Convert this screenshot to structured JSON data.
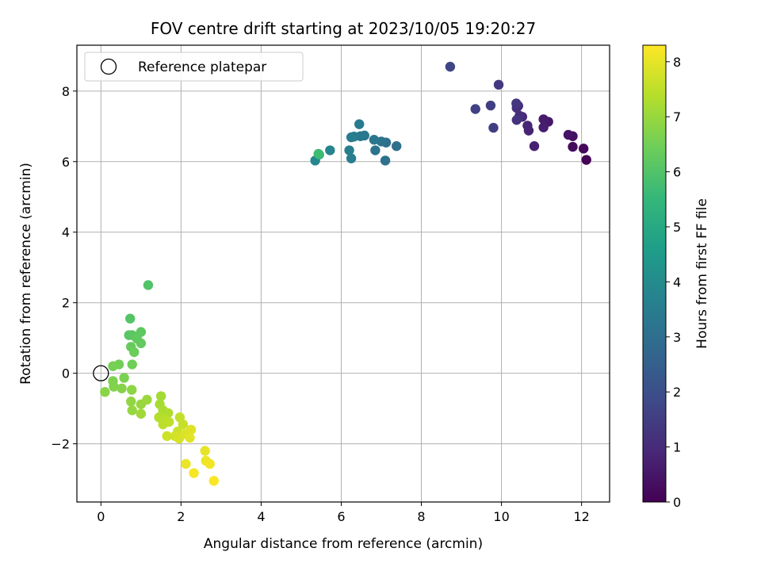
{
  "chart_data": {
    "type": "scatter",
    "title": "FOV centre drift starting at 2023/10/05 19:20:27",
    "xlabel": "Angular distance from reference (arcmin)",
    "ylabel": "Rotation from reference (arcmin)",
    "xlim": [
      -0.6,
      12.7
    ],
    "ylim": [
      -3.65,
      9.3
    ],
    "xticks": [
      0,
      2,
      4,
      6,
      8,
      10,
      12
    ],
    "yticks": [
      -2,
      0,
      2,
      4,
      6,
      8
    ],
    "grid": true,
    "legend": {
      "placement": "top-left",
      "entries": [
        "Reference platepar"
      ]
    },
    "reference_point": {
      "x": 0,
      "y": 0
    },
    "colorbar": {
      "label": "Hours from first FF file",
      "colormap": "viridis",
      "range": [
        0,
        8.3
      ],
      "ticks": [
        0,
        1,
        2,
        3,
        4,
        5,
        6,
        7,
        8
      ]
    },
    "points": [
      {
        "x": 12.12,
        "y": 6.05,
        "c": 0.05
      },
      {
        "x": 12.05,
        "y": 6.37,
        "c": 0.15
      },
      {
        "x": 11.78,
        "y": 6.42,
        "c": 0.25
      },
      {
        "x": 11.78,
        "y": 6.72,
        "c": 0.35
      },
      {
        "x": 11.67,
        "y": 6.76,
        "c": 0.45
      },
      {
        "x": 11.17,
        "y": 7.13,
        "c": 0.55
      },
      {
        "x": 11.05,
        "y": 7.2,
        "c": 0.62
      },
      {
        "x": 11.05,
        "y": 6.97,
        "c": 0.68
      },
      {
        "x": 10.82,
        "y": 6.44,
        "c": 0.75
      },
      {
        "x": 10.68,
        "y": 6.88,
        "c": 0.82
      },
      {
        "x": 10.65,
        "y": 7.02,
        "c": 0.88
      },
      {
        "x": 10.52,
        "y": 7.27,
        "c": 0.95
      },
      {
        "x": 10.42,
        "y": 7.58,
        "c": 1.02
      },
      {
        "x": 10.45,
        "y": 7.3,
        "c": 1.08
      },
      {
        "x": 10.38,
        "y": 7.52,
        "c": 1.15
      },
      {
        "x": 10.38,
        "y": 7.18,
        "c": 1.22
      },
      {
        "x": 10.37,
        "y": 7.65,
        "c": 1.3
      },
      {
        "x": 9.93,
        "y": 8.18,
        "c": 1.38
      },
      {
        "x": 9.8,
        "y": 6.96,
        "c": 1.46
      },
      {
        "x": 9.73,
        "y": 7.59,
        "c": 1.54
      },
      {
        "x": 9.35,
        "y": 7.49,
        "c": 1.62
      },
      {
        "x": 8.72,
        "y": 8.69,
        "c": 1.7
      },
      {
        "x": 7.38,
        "y": 6.44,
        "c": 3.0
      },
      {
        "x": 7.12,
        "y": 6.54,
        "c": 3.05
      },
      {
        "x": 7.1,
        "y": 6.03,
        "c": 3.1
      },
      {
        "x": 7.0,
        "y": 6.57,
        "c": 3.15
      },
      {
        "x": 6.85,
        "y": 6.32,
        "c": 3.2
      },
      {
        "x": 6.82,
        "y": 6.62,
        "c": 3.25
      },
      {
        "x": 6.58,
        "y": 6.74,
        "c": 3.3
      },
      {
        "x": 6.48,
        "y": 6.72,
        "c": 3.35
      },
      {
        "x": 6.45,
        "y": 7.06,
        "c": 3.4
      },
      {
        "x": 6.32,
        "y": 6.71,
        "c": 3.45
      },
      {
        "x": 6.25,
        "y": 6.69,
        "c": 3.5
      },
      {
        "x": 6.25,
        "y": 6.09,
        "c": 3.55
      },
      {
        "x": 6.2,
        "y": 6.32,
        "c": 3.6
      },
      {
        "x": 5.72,
        "y": 6.32,
        "c": 3.75
      },
      {
        "x": 5.35,
        "y": 6.03,
        "c": 3.85
      },
      {
        "x": 5.45,
        "y": 6.2,
        "c": 5.3
      },
      {
        "x": 5.43,
        "y": 6.22,
        "c": 5.7
      },
      {
        "x": 1.18,
        "y": 2.5,
        "c": 6.0
      },
      {
        "x": 0.73,
        "y": 1.55,
        "c": 6.05
      },
      {
        "x": 0.7,
        "y": 1.08,
        "c": 6.1
      },
      {
        "x": 0.78,
        "y": 1.08,
        "c": 6.15
      },
      {
        "x": 1.0,
        "y": 1.17,
        "c": 6.2
      },
      {
        "x": 0.9,
        "y": 0.98,
        "c": 6.25
      },
      {
        "x": 1.0,
        "y": 0.85,
        "c": 6.3
      },
      {
        "x": 0.75,
        "y": 0.75,
        "c": 6.35
      },
      {
        "x": 0.83,
        "y": 0.6,
        "c": 6.4
      },
      {
        "x": 0.78,
        "y": 0.25,
        "c": 6.45
      },
      {
        "x": 0.45,
        "y": 0.25,
        "c": 6.5
      },
      {
        "x": 0.3,
        "y": 0.2,
        "c": 6.55
      },
      {
        "x": 0.58,
        "y": -0.13,
        "c": 6.6
      },
      {
        "x": 0.3,
        "y": -0.22,
        "c": 6.65
      },
      {
        "x": 0.32,
        "y": -0.38,
        "c": 6.7
      },
      {
        "x": 0.52,
        "y": -0.43,
        "c": 6.75
      },
      {
        "x": 0.1,
        "y": -0.53,
        "c": 6.8
      },
      {
        "x": 0.77,
        "y": -0.47,
        "c": 6.85
      },
      {
        "x": 0.75,
        "y": -0.8,
        "c": 6.9
      },
      {
        "x": 0.78,
        "y": -1.05,
        "c": 6.95
      },
      {
        "x": 1.0,
        "y": -0.88,
        "c": 7.0
      },
      {
        "x": 1.15,
        "y": -0.75,
        "c": 7.05
      },
      {
        "x": 1.0,
        "y": -1.15,
        "c": 7.1
      },
      {
        "x": 1.5,
        "y": -0.65,
        "c": 7.15
      },
      {
        "x": 1.47,
        "y": -0.88,
        "c": 7.2
      },
      {
        "x": 1.55,
        "y": -1.05,
        "c": 7.25
      },
      {
        "x": 1.68,
        "y": -1.13,
        "c": 7.3
      },
      {
        "x": 1.45,
        "y": -1.25,
        "c": 7.35
      },
      {
        "x": 1.6,
        "y": -1.3,
        "c": 7.4
      },
      {
        "x": 1.55,
        "y": -1.45,
        "c": 7.45
      },
      {
        "x": 1.7,
        "y": -1.38,
        "c": 7.5
      },
      {
        "x": 1.97,
        "y": -1.25,
        "c": 7.55
      },
      {
        "x": 2.05,
        "y": -1.45,
        "c": 7.6
      },
      {
        "x": 1.92,
        "y": -1.65,
        "c": 7.65
      },
      {
        "x": 1.65,
        "y": -1.78,
        "c": 7.7
      },
      {
        "x": 1.85,
        "y": -1.78,
        "c": 7.75
      },
      {
        "x": 1.95,
        "y": -1.85,
        "c": 7.8
      },
      {
        "x": 2.1,
        "y": -1.72,
        "c": 7.85
      },
      {
        "x": 2.25,
        "y": -1.6,
        "c": 7.9
      },
      {
        "x": 2.22,
        "y": -1.83,
        "c": 7.95
      },
      {
        "x": 2.6,
        "y": -2.2,
        "c": 8.0
      },
      {
        "x": 2.12,
        "y": -2.57,
        "c": 8.05
      },
      {
        "x": 2.62,
        "y": -2.48,
        "c": 8.1
      },
      {
        "x": 2.72,
        "y": -2.57,
        "c": 8.15
      },
      {
        "x": 2.32,
        "y": -2.83,
        "c": 8.2
      },
      {
        "x": 2.82,
        "y": -3.05,
        "c": 8.25
      }
    ]
  }
}
